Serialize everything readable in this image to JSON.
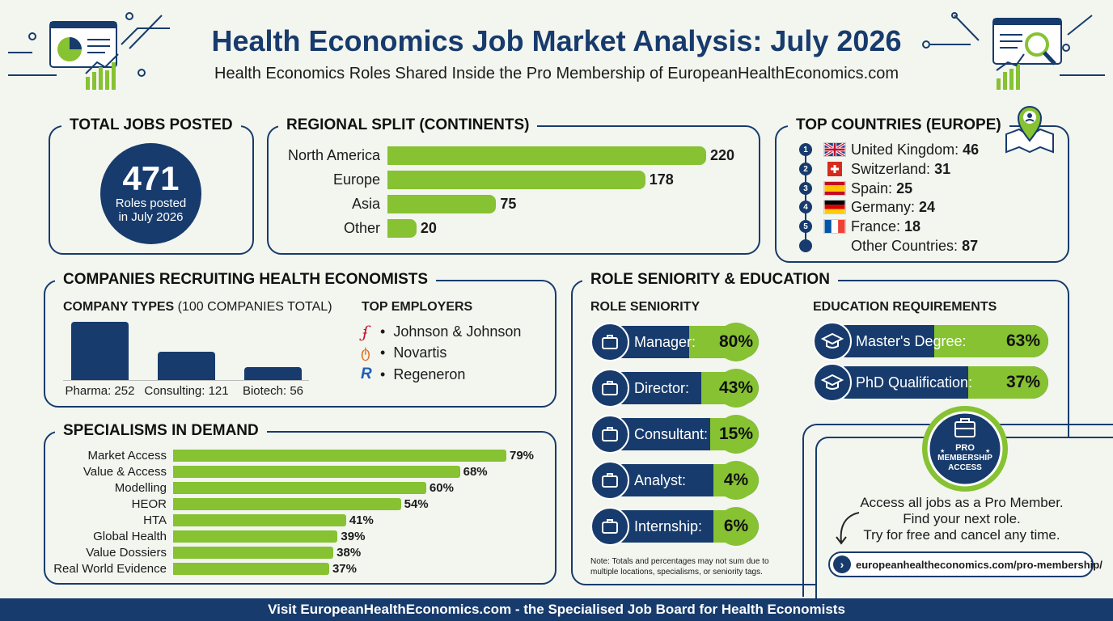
{
  "header": {
    "title": "Health Economics Job Market Analysis: July 2026",
    "subtitle": "Health Economics Roles Shared Inside the Pro Membership of EuropeanHealthEconomics.com"
  },
  "total_jobs": {
    "heading": "TOTAL JOBS POSTED",
    "value": "471",
    "caption_line1": "Roles posted",
    "caption_line2": "in July 2026"
  },
  "regional": {
    "heading": "REGIONAL SPLIT (CONTINENTS)"
  },
  "countries": {
    "heading": "TOP COUNTRIES (EUROPE)",
    "items": [
      {
        "num": "1",
        "name": "United Kingdom:",
        "value": "46"
      },
      {
        "num": "2",
        "name": "Switzerland:",
        "value": "31"
      },
      {
        "num": "3",
        "name": "Spain:",
        "value": "25"
      },
      {
        "num": "4",
        "name": "Germany:",
        "value": "24"
      },
      {
        "num": "5",
        "name": "France:",
        "value": "18"
      },
      {
        "num": "",
        "name": "Other Countries:",
        "value": "87"
      }
    ]
  },
  "companies": {
    "heading": "COMPANIES RECRUITING HEALTH ECONOMISTS",
    "types_heading_bold": "COMPANY TYPES",
    "types_heading_rest": " (100 COMPANIES TOTAL)",
    "employers_heading": "TOP EMPLOYERS",
    "employers": [
      "Johnson & Johnson",
      "Novartis",
      "Regeneron"
    ]
  },
  "specialisms": {
    "heading": "SPECIALISMS IN DEMAND"
  },
  "seniority": {
    "heading": "ROLE SENIORITY & EDUCATION",
    "role_heading": "ROLE SENIORITY",
    "edu_heading": "EDUCATION REQUIREMENTS",
    "note": "Note: Totals and percentages may not sum due to multiple locations, specialisms, or seniority tags."
  },
  "promo": {
    "badge_line1": "PRO",
    "badge_line2": "MEMBERSHIP",
    "badge_line3": "ACCESS",
    "line1": "Access all jobs as a Pro Member.",
    "line2": "Find your next role.",
    "line3": "Try for free and cancel any time.",
    "link": "europeanhealtheconomics.com/pro-membership/"
  },
  "footer": {
    "text": "Visit EuropeanHealthEconomics.com - the Specialised Job Board for Health Economists"
  },
  "colors": {
    "navy": "#173b6c",
    "green": "#86c232",
    "background": "#f3f5ef"
  },
  "chart_data": [
    {
      "type": "bar",
      "orientation": "horizontal",
      "title": "REGIONAL SPLIT (CONTINENTS)",
      "categories": [
        "North America",
        "Europe",
        "Asia",
        "Other"
      ],
      "values": [
        220,
        178,
        75,
        20
      ],
      "value_labels": [
        "220",
        "178",
        "75",
        "20"
      ]
    },
    {
      "type": "bar",
      "title": "COMPANY TYPES (100 COMPANIES TOTAL)",
      "categories": [
        "Pharma",
        "Consulting",
        "Biotech"
      ],
      "values": [
        252,
        121,
        56
      ],
      "labels": [
        "Pharma: 252",
        "Consulting: 121",
        "Biotech: 56"
      ]
    },
    {
      "type": "bar",
      "orientation": "horizontal",
      "title": "SPECIALISMS IN DEMAND",
      "categories": [
        "Market Access",
        "Value & Access",
        "Modelling",
        "HEOR",
        "HTA",
        "Global Health",
        "Value Dossiers",
        "Real World Evidence"
      ],
      "values": [
        79,
        68,
        60,
        54,
        41,
        39,
        38,
        37
      ],
      "value_labels": [
        "79%",
        "68%",
        "60%",
        "54%",
        "41%",
        "39%",
        "38%",
        "37%"
      ]
    },
    {
      "type": "bar",
      "title": "ROLE SENIORITY",
      "categories": [
        "Manager:",
        "Director:",
        "Consultant:",
        "Analyst:",
        "Internship:"
      ],
      "values": [
        80,
        43,
        15,
        4,
        6
      ],
      "value_labels": [
        "80%",
        "43%",
        "15%",
        "4%",
        "6%"
      ]
    },
    {
      "type": "bar",
      "title": "EDUCATION REQUIREMENTS",
      "categories": [
        "Master's Degree:",
        "PhD Qualification:"
      ],
      "values": [
        63,
        37
      ],
      "value_labels": [
        "63%",
        "37%"
      ]
    }
  ]
}
